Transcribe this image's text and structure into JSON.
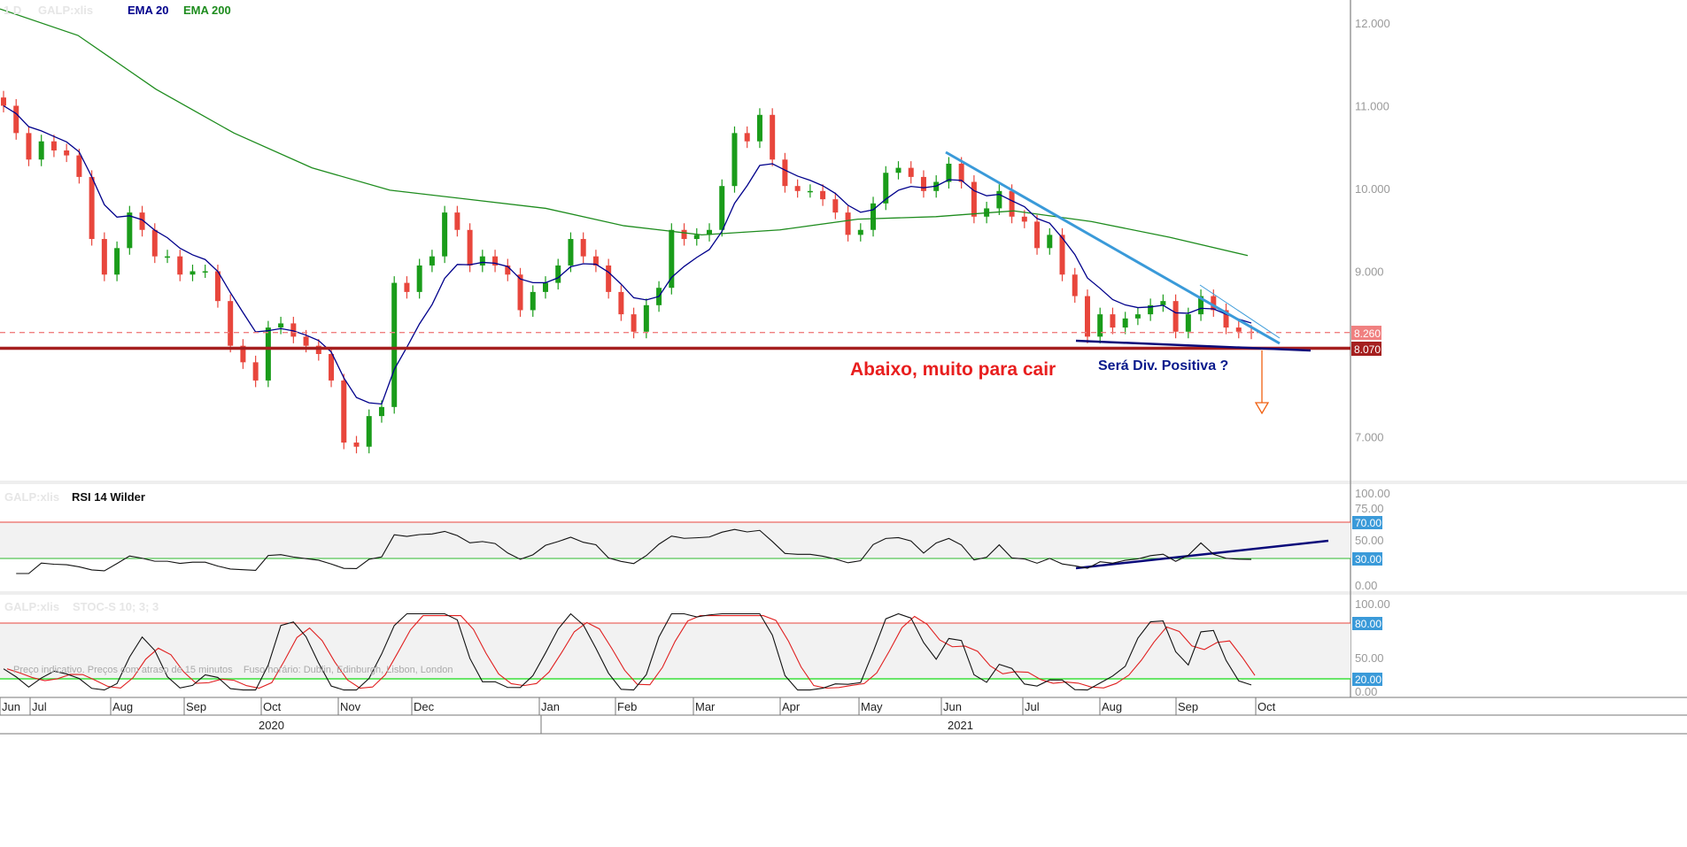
{
  "header": {
    "interval": "1 D",
    "symbol": "GALP:xlis",
    "ema20_label": "EMA 20",
    "ema200_label": "EMA 200"
  },
  "colors": {
    "up": "#1a9c1a",
    "down": "#e8463c",
    "ema20": "#00008b",
    "ema200": "#1e8c1e",
    "support": "#b22222",
    "trend": "#3a9ad9",
    "annotation_red": "#e81e1e",
    "annotation_navy": "#0a1a8c",
    "arrow": "#f06010"
  },
  "chart_data": [
    {
      "type": "candlestick",
      "title": "",
      "ylim": [
        6.5,
        12.3
      ],
      "yticks": [
        "12.000",
        "11.000",
        "10.000",
        "9.000",
        "7.000"
      ],
      "price_labels": [
        "8.260",
        "8.070"
      ],
      "closes": [
        11.0,
        10.67,
        10.35,
        10.57,
        10.46,
        10.4,
        10.14,
        9.39,
        8.96,
        9.28,
        9.71,
        9.5,
        9.18,
        9.18,
        8.96,
        9.0,
        9.0,
        8.64,
        8.1,
        7.9,
        7.68,
        8.32,
        8.37,
        8.21,
        8.1,
        8.0,
        7.68,
        6.93,
        6.88,
        7.25,
        7.36,
        8.86,
        8.75,
        9.07,
        9.18,
        9.71,
        9.5,
        9.07,
        9.18,
        9.07,
        8.96,
        8.53,
        8.75,
        8.86,
        9.07,
        9.39,
        9.18,
        9.07,
        8.75,
        8.48,
        8.27,
        8.59,
        8.8,
        9.5,
        9.39,
        9.44,
        9.5,
        10.03,
        10.67,
        10.57,
        10.89,
        10.35,
        10.03,
        9.97,
        9.97,
        9.87,
        9.71,
        9.44,
        9.5,
        9.82,
        10.19,
        10.25,
        10.14,
        9.97,
        10.08,
        10.3,
        10.08,
        9.66,
        9.76,
        9.97,
        9.66,
        9.6,
        9.28,
        9.44,
        8.96,
        8.7,
        8.21,
        8.48,
        8.32,
        8.43,
        8.48,
        8.59,
        8.64,
        8.27,
        8.48,
        8.7,
        8.53,
        8.32,
        8.27,
        8.26
      ],
      "ema200": [
        12.17,
        11.85,
        11.2,
        10.67,
        10.25,
        9.98,
        9.87,
        9.76,
        9.55,
        9.44,
        9.5,
        9.63,
        9.66,
        9.73,
        9.6,
        9.41,
        9.19
      ],
      "support_level": 8.07,
      "dashed_level": 8.26,
      "annotations": {
        "below_text": "Abaixo, muito para cair",
        "divergence_text": "Será Div. Positiva ?"
      }
    },
    {
      "type": "line",
      "title": "RSI 14 Wilder",
      "symbol": "GALP:xlis",
      "ylim": [
        0,
        100
      ],
      "yticks": [
        "100.00",
        "75.00",
        "50.00",
        "0.00"
      ],
      "levels": [
        "70.00",
        "30.00"
      ]
    },
    {
      "type": "line",
      "title": "STOC-S 10; 3; 3",
      "symbol": "GALP:xlis",
      "ylim": [
        0,
        100
      ],
      "yticks": [
        "100.00",
        "50.00",
        "0.00"
      ],
      "levels": [
        "80.00",
        "20.00"
      ]
    }
  ],
  "footer": {
    "note": "Preço indicativo. Preços com atraso de 15 minutos    Fuso horário: Dublin, Edinburgh, Lisbon, London",
    "months": [
      "Jun",
      "Jul",
      "Aug",
      "Sep",
      "Oct",
      "Nov",
      "Dec",
      "Jan",
      "Feb",
      "Mar",
      "Apr",
      "May",
      "Jun",
      "Jul",
      "Aug",
      "Sep",
      "Oct"
    ],
    "years": [
      "2020",
      "2021"
    ]
  }
}
